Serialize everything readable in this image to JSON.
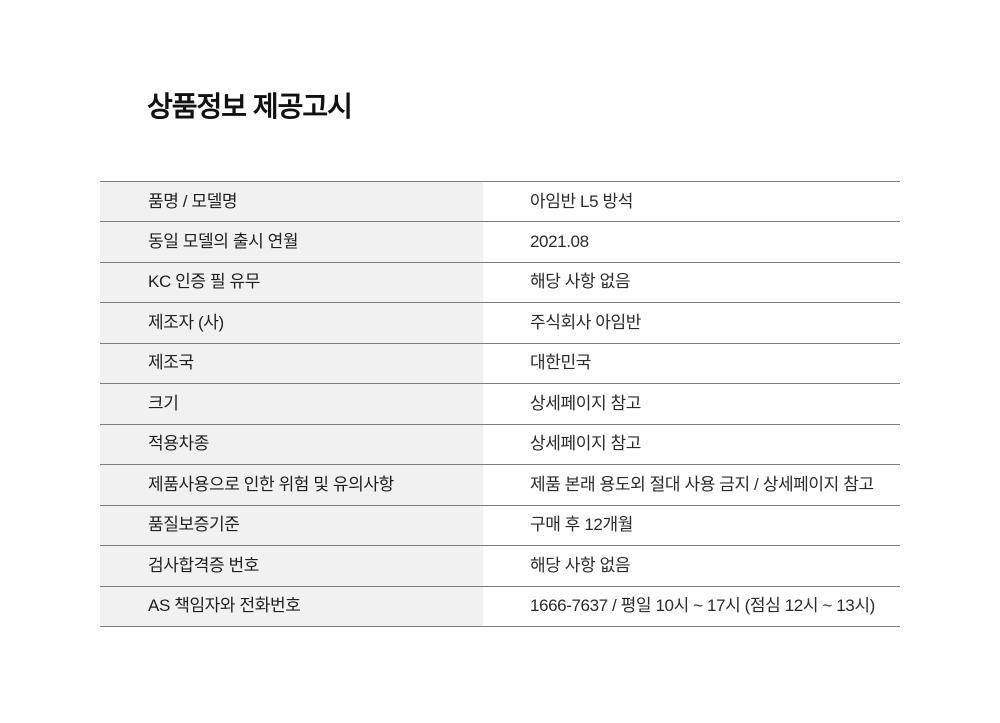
{
  "page": {
    "title": "상품정보 제공고시"
  },
  "colors": {
    "label_background": "#f1f1f1",
    "divider_line": "#7d7d7d",
    "text": "#1f1f1f",
    "page_background": "#ffffff"
  },
  "table": {
    "rows": [
      {
        "label": "품명 / 모델명",
        "value": "아임반 L5 방석"
      },
      {
        "label": "동일 모델의 출시 연월",
        "value": "2021.08"
      },
      {
        "label": "KC 인증 필 유무",
        "value": "해당 사항 없음"
      },
      {
        "label": "제조자 (사)",
        "value": "주식회사 아임반"
      },
      {
        "label": "제조국",
        "value": "대한민국"
      },
      {
        "label": "크기",
        "value": "상세페이지 참고"
      },
      {
        "label": "적용차종",
        "value": "상세페이지 참고"
      },
      {
        "label": "제품사용으로 인한 위험 및 유의사항",
        "value": "제품 본래 용도외 절대 사용 금지 / 상세페이지 참고"
      },
      {
        "label": "품질보증기준",
        "value": "구매 후 12개월"
      },
      {
        "label": "검사합격증 번호",
        "value": "해당 사항 없음"
      },
      {
        "label": "AS 책임자와 전화번호",
        "value": "1666-7637 / 평일 10시 ~ 17시 (점심 12시 ~ 13시)"
      }
    ]
  }
}
